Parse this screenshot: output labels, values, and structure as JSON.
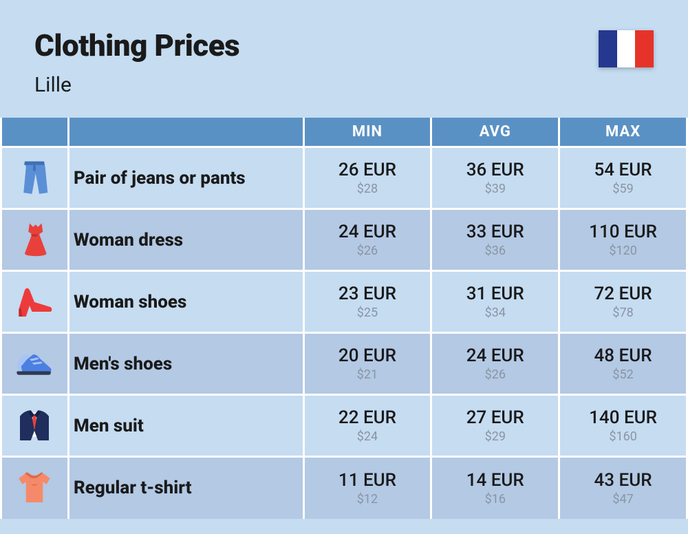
{
  "colors": {
    "page_bg": "#c5dcf1",
    "header_row_bg": "#5a91c4",
    "header_row_text": "#ffffff",
    "row_even_bg": "#c5dcf1",
    "row_odd_bg": "#b3c9e4",
    "text_primary": "#1a1a1a",
    "text_secondary": "#8a95a3",
    "cell_border": "#ffffff",
    "flag_blue": "#24388f",
    "flag_white": "#ffffff",
    "flag_red": "#e63329"
  },
  "title": "Clothing Prices",
  "subtitle": "Lille",
  "columns": [
    "MIN",
    "AVG",
    "MAX"
  ],
  "rows": [
    {
      "icon": "jeans",
      "name": "Pair of jeans or pants",
      "min_eur": "26 EUR",
      "min_usd": "$28",
      "avg_eur": "36 EUR",
      "avg_usd": "$39",
      "max_eur": "54 EUR",
      "max_usd": "$59"
    },
    {
      "icon": "dress",
      "name": "Woman dress",
      "min_eur": "24 EUR",
      "min_usd": "$26",
      "avg_eur": "33 EUR",
      "avg_usd": "$36",
      "max_eur": "110 EUR",
      "max_usd": "$120"
    },
    {
      "icon": "heel",
      "name": "Woman shoes",
      "min_eur": "23 EUR",
      "min_usd": "$25",
      "avg_eur": "31 EUR",
      "avg_usd": "$34",
      "max_eur": "72 EUR",
      "max_usd": "$78"
    },
    {
      "icon": "sneaker",
      "name": "Men's shoes",
      "min_eur": "20 EUR",
      "min_usd": "$21",
      "avg_eur": "24 EUR",
      "avg_usd": "$26",
      "max_eur": "48 EUR",
      "max_usd": "$52"
    },
    {
      "icon": "suit",
      "name": "Men suit",
      "min_eur": "22 EUR",
      "min_usd": "$24",
      "avg_eur": "27 EUR",
      "avg_usd": "$29",
      "max_eur": "140 EUR",
      "max_usd": "$160"
    },
    {
      "icon": "tshirt",
      "name": "Regular t-shirt",
      "min_eur": "11 EUR",
      "min_usd": "$12",
      "avg_eur": "14 EUR",
      "avg_usd": "$16",
      "max_eur": "43 EUR",
      "max_usd": "$47"
    }
  ],
  "icon_colors": {
    "jeans_main": "#5a8fd6",
    "jeans_dark": "#3f6fb5",
    "dress": "#e8413c",
    "dress_dark": "#c6302b",
    "heel": "#ed3b3b",
    "heel_dark": "#c42a2a",
    "sneaker_main": "#4b7fe0",
    "sneaker_sole": "#2e3a52",
    "sneaker_accent": "#a8c4f5",
    "suit_jacket": "#1f2e5c",
    "suit_shirt": "#ffffff",
    "suit_tie": "#e8413c",
    "suit_dark": "#14204a",
    "tshirt": "#f58a6a",
    "tshirt_dark": "#e06b4a"
  }
}
